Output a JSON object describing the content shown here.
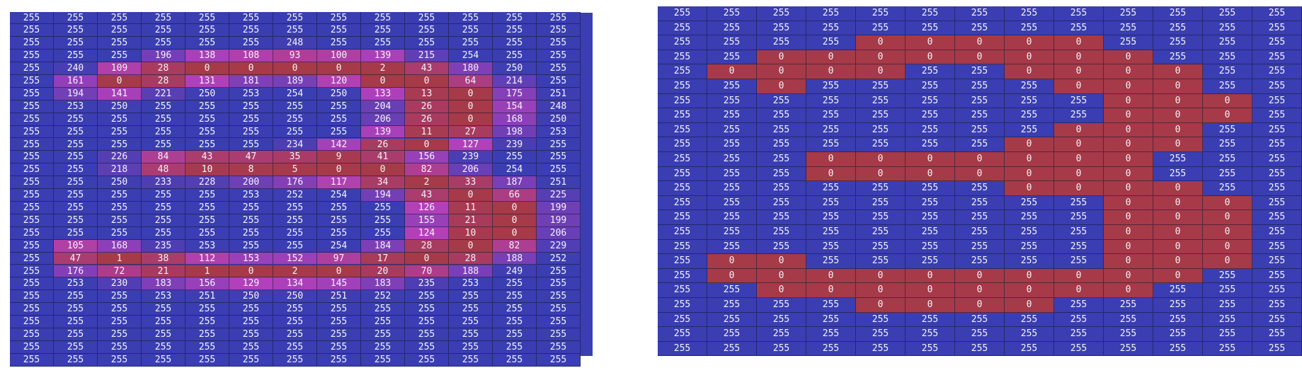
{
  "left_grid": {
    "rows": [
      [
        255,
        255,
        255,
        255,
        255,
        255,
        255,
        255,
        255,
        255,
        255,
        255,
        255
      ],
      [
        255,
        255,
        255,
        255,
        255,
        255,
        255,
        255,
        255,
        255,
        255,
        255,
        255
      ],
      [
        255,
        255,
        255,
        255,
        255,
        255,
        248,
        255,
        255,
        255,
        255,
        255,
        255
      ],
      [
        255,
        255,
        255,
        196,
        138,
        108,
        93,
        100,
        139,
        215,
        254,
        255,
        255
      ],
      [
        255,
        240,
        109,
        28,
        0,
        0,
        0,
        0,
        2,
        43,
        180,
        250,
        255
      ],
      [
        255,
        161,
        0,
        28,
        131,
        181,
        189,
        120,
        0,
        0,
        64,
        214,
        255
      ],
      [
        255,
        194,
        141,
        221,
        250,
        253,
        254,
        250,
        133,
        13,
        0,
        175,
        251
      ],
      [
        255,
        253,
        250,
        255,
        255,
        255,
        255,
        255,
        204,
        26,
        0,
        154,
        248
      ],
      [
        255,
        255,
        255,
        255,
        255,
        255,
        255,
        255,
        206,
        26,
        0,
        168,
        250
      ],
      [
        255,
        255,
        255,
        255,
        255,
        255,
        255,
        255,
        139,
        11,
        27,
        198,
        253
      ],
      [
        255,
        255,
        255,
        255,
        255,
        255,
        234,
        142,
        26,
        0,
        127,
        239,
        255
      ],
      [
        255,
        255,
        226,
        84,
        43,
        47,
        35,
        9,
        41,
        156,
        239,
        255,
        255
      ],
      [
        255,
        255,
        218,
        48,
        10,
        8,
        5,
        0,
        0,
        82,
        206,
        254,
        255
      ],
      [
        255,
        255,
        250,
        233,
        228,
        200,
        176,
        117,
        34,
        2,
        33,
        187,
        251
      ],
      [
        255,
        255,
        255,
        255,
        255,
        253,
        252,
        254,
        194,
        43,
        0,
        66,
        225
      ],
      [
        255,
        255,
        255,
        255,
        255,
        255,
        255,
        255,
        255,
        126,
        11,
        0,
        199
      ],
      [
        255,
        255,
        255,
        255,
        255,
        255,
        255,
        255,
        255,
        155,
        21,
        0,
        199
      ],
      [
        255,
        255,
        255,
        255,
        255,
        255,
        255,
        255,
        255,
        124,
        10,
        0,
        206
      ],
      [
        255,
        105,
        168,
        235,
        253,
        255,
        255,
        254,
        184,
        28,
        0,
        82,
        229
      ],
      [
        255,
        47,
        1,
        38,
        112,
        153,
        152,
        97,
        17,
        0,
        28,
        188,
        252
      ],
      [
        255,
        176,
        72,
        21,
        1,
        0,
        2,
        0,
        20,
        70,
        188,
        249,
        255
      ],
      [
        255,
        253,
        230,
        183,
        156,
        129,
        134,
        145,
        183,
        235,
        253,
        255,
        255
      ],
      [
        255,
        255,
        255,
        253,
        251,
        250,
        250,
        251,
        252,
        255,
        255,
        255,
        255
      ],
      [
        255,
        255,
        255,
        255,
        255,
        255,
        255,
        255,
        255,
        255,
        255,
        255,
        255
      ],
      [
        255,
        255,
        255,
        255,
        255,
        255,
        255,
        255,
        255,
        255,
        255,
        255,
        255
      ],
      [
        255,
        255,
        255,
        255,
        255,
        255,
        255,
        255,
        255,
        255,
        255,
        255,
        255
      ],
      [
        255,
        255,
        255,
        255,
        255,
        255,
        255,
        255,
        255,
        255,
        255,
        255,
        255
      ],
      [
        255,
        255,
        255,
        255,
        255,
        255,
        255,
        255,
        255,
        255,
        255,
        255,
        255
      ]
    ]
  },
  "right_grid": {
    "rows": [
      [
        255,
        255,
        255,
        255,
        255,
        255,
        255,
        255,
        255,
        255,
        255,
        255,
        255
      ],
      [
        255,
        255,
        255,
        255,
        255,
        255,
        255,
        255,
        255,
        255,
        255,
        255,
        255
      ],
      [
        255,
        255,
        255,
        255,
        0,
        0,
        0,
        0,
        0,
        255,
        255,
        255,
        255
      ],
      [
        255,
        255,
        0,
        0,
        0,
        0,
        0,
        0,
        0,
        0,
        255,
        255,
        255
      ],
      [
        255,
        0,
        0,
        0,
        0,
        255,
        255,
        0,
        0,
        0,
        0,
        255,
        255
      ],
      [
        255,
        255,
        0,
        255,
        255,
        255,
        255,
        255,
        0,
        0,
        0,
        255,
        255
      ],
      [
        255,
        255,
        255,
        255,
        255,
        255,
        255,
        255,
        255,
        0,
        0,
        0,
        255
      ],
      [
        255,
        255,
        255,
        255,
        255,
        255,
        255,
        255,
        255,
        0,
        0,
        0,
        255
      ],
      [
        255,
        255,
        255,
        255,
        255,
        255,
        255,
        255,
        0,
        0,
        0,
        255,
        255
      ],
      [
        255,
        255,
        255,
        255,
        255,
        255,
        255,
        0,
        0,
        0,
        0,
        255,
        255
      ],
      [
        255,
        255,
        255,
        0,
        0,
        0,
        0,
        0,
        0,
        0,
        255,
        255,
        255
      ],
      [
        255,
        255,
        255,
        0,
        0,
        0,
        0,
        0,
        0,
        0,
        255,
        255,
        255
      ],
      [
        255,
        255,
        255,
        255,
        255,
        255,
        255,
        0,
        0,
        0,
        0,
        255,
        255
      ],
      [
        255,
        255,
        255,
        255,
        255,
        255,
        255,
        255,
        255,
        0,
        0,
        0,
        255
      ],
      [
        255,
        255,
        255,
        255,
        255,
        255,
        255,
        255,
        255,
        0,
        0,
        0,
        255
      ],
      [
        255,
        255,
        255,
        255,
        255,
        255,
        255,
        255,
        255,
        0,
        0,
        0,
        255
      ],
      [
        255,
        255,
        255,
        255,
        255,
        255,
        255,
        255,
        255,
        0,
        0,
        0,
        255
      ],
      [
        255,
        0,
        0,
        255,
        255,
        255,
        255,
        255,
        255,
        0,
        0,
        0,
        255
      ],
      [
        255,
        0,
        0,
        0,
        0,
        0,
        0,
        0,
        0,
        0,
        0,
        255,
        255
      ],
      [
        255,
        255,
        0,
        0,
        0,
        0,
        0,
        0,
        0,
        0,
        255,
        255,
        255
      ],
      [
        255,
        255,
        255,
        255,
        0,
        0,
        0,
        0,
        255,
        255,
        255,
        255,
        255
      ],
      [
        255,
        255,
        255,
        255,
        255,
        255,
        255,
        255,
        255,
        255,
        255,
        255,
        255
      ],
      [
        255,
        255,
        255,
        255,
        255,
        255,
        255,
        255,
        255,
        255,
        255,
        255,
        255
      ],
      [
        255,
        255,
        255,
        255,
        255,
        255,
        255,
        255,
        255,
        255,
        255,
        255,
        255
      ]
    ]
  }
}
